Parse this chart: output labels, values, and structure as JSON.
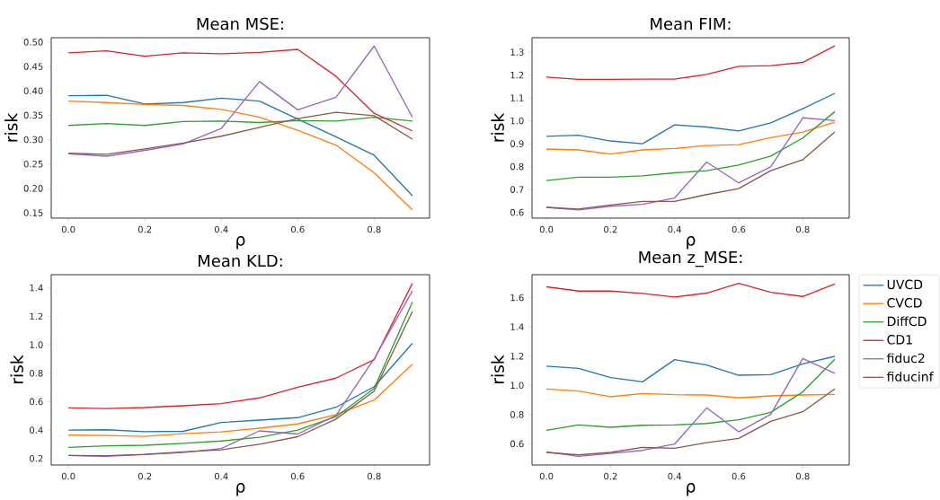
{
  "chart_data": [
    {
      "type": "line",
      "title": "Mean MSE:",
      "xlabel": "ρ",
      "ylabel": "risk",
      "x": [
        0,
        0.1,
        0.2,
        0.3,
        0.4,
        0.5,
        0.6,
        0.7,
        0.8,
        0.9
      ],
      "xlim": [
        -0.045,
        0.945
      ],
      "ylim": [
        0.139,
        0.509
      ],
      "xticks": [
        {
          "value": 0,
          "label": "0.0"
        },
        {
          "value": 0.2,
          "label": "0.2"
        },
        {
          "value": 0.4,
          "label": "0.4"
        },
        {
          "value": 0.6,
          "label": "0.6"
        },
        {
          "value": 0.8,
          "label": "0.8"
        }
      ],
      "yticks": [
        {
          "value": 0.15,
          "label": "0.15"
        },
        {
          "value": 0.2,
          "label": "0.20"
        },
        {
          "value": 0.25,
          "label": "0.25"
        },
        {
          "value": 0.3,
          "label": "0.30"
        },
        {
          "value": 0.35,
          "label": "0.35"
        },
        {
          "value": 0.4,
          "label": "0.40"
        },
        {
          "value": 0.45,
          "label": "0.45"
        },
        {
          "value": 0.5,
          "label": "0.50"
        }
      ],
      "series": [
        {
          "color": "#1f77b4",
          "values": [
            0.39,
            0.391,
            0.373,
            0.376,
            0.385,
            0.379,
            0.342,
            0.306,
            0.268,
            0.185
          ]
        },
        {
          "color": "#ff7f0e",
          "values": [
            0.379,
            0.376,
            0.372,
            0.37,
            0.362,
            0.346,
            0.319,
            0.289,
            0.232,
            0.156
          ]
        },
        {
          "color": "#2ca02c",
          "values": [
            0.329,
            0.333,
            0.329,
            0.337,
            0.338,
            0.335,
            0.339,
            0.338,
            0.346,
            0.338
          ]
        },
        {
          "color": "#d62728",
          "values": [
            0.478,
            0.482,
            0.471,
            0.478,
            0.476,
            0.479,
            0.485,
            0.43,
            0.354,
            0.318
          ]
        },
        {
          "color": "#9467bd",
          "values": [
            0.271,
            0.266,
            0.278,
            0.291,
            0.323,
            0.419,
            0.361,
            0.387,
            0.492,
            0.346
          ]
        },
        {
          "color": "#8c564b",
          "values": [
            0.272,
            0.27,
            0.281,
            0.293,
            0.307,
            0.325,
            0.343,
            0.356,
            0.349,
            0.301
          ]
        }
      ]
    },
    {
      "type": "line",
      "title": "Mean FIM:",
      "xlabel": "ρ",
      "ylabel": "risk",
      "x": [
        0,
        0.1,
        0.2,
        0.3,
        0.4,
        0.5,
        0.6,
        0.7,
        0.8,
        0.9
      ],
      "xlim": [
        -0.045,
        0.945
      ],
      "ylim": [
        0.575,
        1.363
      ],
      "xticks": [
        {
          "value": 0,
          "label": "0.0"
        },
        {
          "value": 0.2,
          "label": "0.2"
        },
        {
          "value": 0.4,
          "label": "0.4"
        },
        {
          "value": 0.6,
          "label": "0.6"
        },
        {
          "value": 0.8,
          "label": "0.8"
        }
      ],
      "yticks": [
        0.6,
        0.7,
        0.8,
        0.9,
        {
          "value": 1,
          "label": "1.0"
        },
        1.1,
        1.2,
        1.3
      ],
      "series": [
        {
          "color": "#1f77b4",
          "values": [
            0.932,
            0.937,
            0.912,
            0.9,
            0.982,
            0.973,
            0.956,
            0.991,
            1.053,
            1.12
          ]
        },
        {
          "color": "#ff7f0e",
          "values": [
            0.877,
            0.873,
            0.855,
            0.873,
            0.879,
            0.892,
            0.896,
            0.926,
            0.951,
            0.994
          ]
        },
        {
          "color": "#2ca02c",
          "values": [
            0.739,
            0.754,
            0.754,
            0.76,
            0.773,
            0.782,
            0.807,
            0.846,
            0.925,
            1.04
          ]
        },
        {
          "color": "#d62728",
          "values": [
            1.191,
            1.181,
            1.181,
            1.182,
            1.182,
            1.203,
            1.238,
            1.241,
            1.255,
            1.327
          ]
        },
        {
          "color": "#9467bd",
          "values": [
            0.622,
            0.611,
            0.627,
            0.635,
            0.663,
            0.82,
            0.729,
            0.799,
            1.013,
            1.001
          ]
        },
        {
          "color": "#8c564b",
          "values": [
            0.622,
            0.615,
            0.632,
            0.648,
            0.648,
            0.678,
            0.704,
            0.782,
            0.83,
            0.951
          ]
        }
      ]
    },
    {
      "type": "line",
      "title": "Mean KLD:",
      "xlabel": "ρ",
      "ylabel": "risk",
      "x": [
        0,
        0.1,
        0.2,
        0.3,
        0.4,
        0.5,
        0.6,
        0.7,
        0.8,
        0.9
      ],
      "xlim": [
        -0.045,
        0.945
      ],
      "ylim": [
        0.154,
        1.493
      ],
      "xticks": [
        {
          "value": 0,
          "label": "0.0"
        },
        {
          "value": 0.2,
          "label": "0.2"
        },
        {
          "value": 0.4,
          "label": "0.4"
        },
        {
          "value": 0.6,
          "label": "0.6"
        },
        {
          "value": 0.8,
          "label": "0.8"
        }
      ],
      "yticks": [
        0.2,
        0.4,
        0.6,
        0.8,
        {
          "value": 1,
          "label": "1.0"
        },
        1.2,
        1.4
      ],
      "series": [
        {
          "color": "#1f77b4",
          "values": [
            0.4,
            0.402,
            0.389,
            0.391,
            0.453,
            0.47,
            0.487,
            0.56,
            0.705,
            1.01
          ]
        },
        {
          "color": "#ff7f0e",
          "values": [
            0.364,
            0.362,
            0.355,
            0.374,
            0.387,
            0.413,
            0.443,
            0.509,
            0.611,
            0.863
          ]
        },
        {
          "color": "#2ca02c",
          "values": [
            0.278,
            0.289,
            0.293,
            0.306,
            0.323,
            0.349,
            0.4,
            0.494,
            0.692,
            1.3
          ]
        },
        {
          "color": "#d62728",
          "values": [
            0.556,
            0.551,
            0.558,
            0.571,
            0.586,
            0.626,
            0.701,
            0.765,
            0.895,
            1.432
          ]
        },
        {
          "color": "#9467bd",
          "values": [
            0.221,
            0.215,
            0.227,
            0.242,
            0.27,
            0.394,
            0.372,
            0.502,
            0.901,
            1.379
          ]
        },
        {
          "color": "#8c564b",
          "values": [
            0.221,
            0.219,
            0.229,
            0.246,
            0.261,
            0.3,
            0.353,
            0.477,
            0.673,
            1.234
          ]
        }
      ]
    },
    {
      "type": "line",
      "title": "Mean z_MSE:",
      "xlabel": "ρ",
      "ylabel": "risk",
      "x": [
        0,
        0.1,
        0.2,
        0.3,
        0.4,
        0.5,
        0.6,
        0.7,
        0.8,
        0.9
      ],
      "xlim": [
        -0.045,
        0.945
      ],
      "ylim": [
        0.455,
        1.757
      ],
      "legend": "right",
      "xticks": [
        {
          "value": 0,
          "label": "0.0"
        },
        {
          "value": 0.2,
          "label": "0.2"
        },
        {
          "value": 0.4,
          "label": "0.4"
        },
        {
          "value": 0.6,
          "label": "0.6"
        },
        {
          "value": 0.8,
          "label": "0.8"
        }
      ],
      "yticks": [
        0.6,
        0.8,
        {
          "value": 1,
          "label": "1.0"
        },
        1.2,
        1.4,
        1.6
      ],
      "series": [
        {
          "name": "UVCD",
          "color": "#1f77b4",
          "values": [
            1.131,
            1.116,
            1.053,
            1.024,
            1.176,
            1.139,
            1.069,
            1.073,
            1.147,
            1.198
          ]
        },
        {
          "name": "CVCD",
          "color": "#ff7f0e",
          "values": [
            0.975,
            0.961,
            0.922,
            0.944,
            0.936,
            0.934,
            0.914,
            0.928,
            0.934,
            0.938
          ]
        },
        {
          "name": "DiffCD",
          "color": "#2ca02c",
          "values": [
            0.692,
            0.729,
            0.713,
            0.727,
            0.729,
            0.739,
            0.764,
            0.815,
            0.955,
            1.178
          ]
        },
        {
          "name": "CD1",
          "color": "#d62728",
          "values": [
            1.674,
            1.645,
            1.645,
            1.629,
            1.604,
            1.631,
            1.698,
            1.637,
            1.608,
            1.694
          ]
        },
        {
          "name": "fiduc2",
          "color": "#9467bd",
          "values": [
            0.545,
            0.514,
            0.534,
            0.555,
            0.598,
            0.846,
            0.682,
            0.801,
            1.184,
            1.082
          ]
        },
        {
          "name": "fiducinf",
          "color": "#8c564b",
          "values": [
            0.541,
            0.524,
            0.541,
            0.575,
            0.569,
            0.608,
            0.637,
            0.754,
            0.819,
            0.975
          ]
        }
      ]
    }
  ]
}
